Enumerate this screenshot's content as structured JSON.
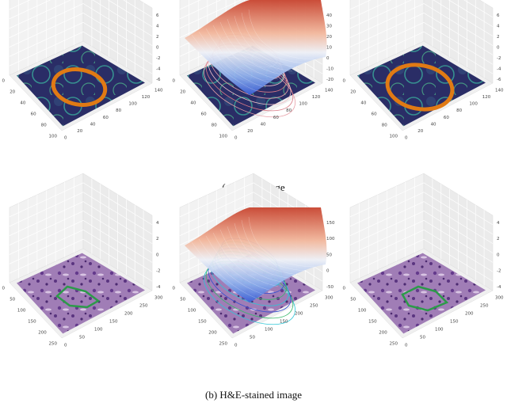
{
  "figure": {
    "rows": [
      {
        "caption": "(a) SEM image",
        "panels": [
          {
            "left_ticks": [
              "0",
              "20",
              "40",
              "60",
              "80",
              "100"
            ],
            "right_ticks": [
              "0",
              "20",
              "40",
              "60",
              "80",
              "100",
              "120",
              "140"
            ],
            "z_ticks": [
              "6",
              "4",
              "2",
              "0",
              "-2",
              "-4",
              "-6"
            ]
          },
          {
            "left_ticks": [
              "0",
              "20",
              "40",
              "60",
              "80",
              "100"
            ],
            "right_ticks": [
              "0",
              "20",
              "40",
              "60",
              "80",
              "100",
              "120",
              "140"
            ],
            "z_ticks": [
              "40",
              "30",
              "20",
              "10",
              "0",
              "-10",
              "-20"
            ]
          },
          {
            "left_ticks": [
              "0",
              "20",
              "40",
              "60",
              "80",
              "100"
            ],
            "right_ticks": [
              "0",
              "20",
              "40",
              "60",
              "80",
              "100",
              "120",
              "140"
            ],
            "z_ticks": [
              "6",
              "4",
              "2",
              "0",
              "-2",
              "-4",
              "-6"
            ]
          }
        ]
      },
      {
        "caption": "(b) H&E-stained image",
        "panels": [
          {
            "left_ticks": [
              "0",
              "50",
              "100",
              "150",
              "200",
              "250"
            ],
            "right_ticks": [
              "0",
              "50",
              "100",
              "150",
              "200",
              "250",
              "300"
            ],
            "z_ticks": [
              "4",
              "2",
              "0",
              "-2",
              "-4"
            ]
          },
          {
            "left_ticks": [
              "0",
              "50",
              "100",
              "150",
              "200",
              "250"
            ],
            "right_ticks": [
              "0",
              "50",
              "100",
              "150",
              "200",
              "250",
              "300"
            ],
            "z_ticks": [
              "150",
              "100",
              "50",
              "0",
              "-50"
            ]
          },
          {
            "left_ticks": [
              "0",
              "50",
              "100",
              "150",
              "200",
              "250"
            ],
            "right_ticks": [
              "0",
              "50",
              "100",
              "150",
              "200",
              "250",
              "300"
            ],
            "z_ticks": [
              "4",
              "2",
              "0",
              "-2",
              "-4"
            ]
          }
        ]
      }
    ]
  }
}
